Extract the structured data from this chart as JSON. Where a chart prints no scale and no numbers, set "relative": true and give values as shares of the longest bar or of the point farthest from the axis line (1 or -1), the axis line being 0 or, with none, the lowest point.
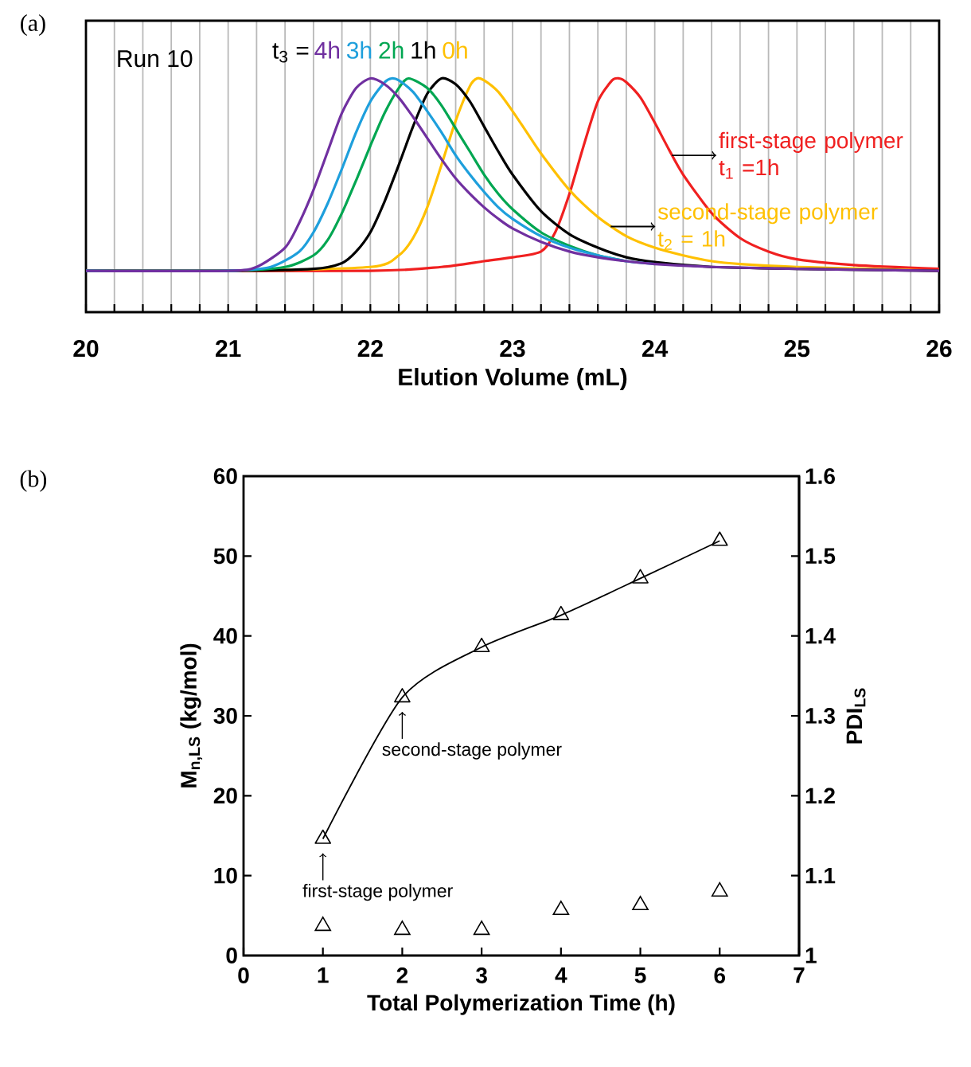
{
  "chart_data": [
    {
      "type": "line",
      "relative": true,
      "tick_labels": "x",
      "grid": "x",
      "xlabel": "Elution Volume (mL)",
      "legend_title": "t$_{3}$ =",
      "xlim": [
        20,
        26
      ],
      "xticks": [
        20,
        {
          "value": 20.2,
          "label": null
        },
        {
          "value": 20.4,
          "label": null
        },
        {
          "value": 20.6,
          "label": null
        },
        {
          "value": 20.8,
          "label": null
        },
        21,
        {
          "value": 21.2,
          "label": null
        },
        {
          "value": 21.4,
          "label": null
        },
        {
          "value": 21.6,
          "label": null
        },
        {
          "value": 21.8,
          "label": null
        },
        22,
        {
          "value": 22.2,
          "label": null
        },
        {
          "value": 22.4,
          "label": null
        },
        {
          "value": 22.6,
          "label": null
        },
        {
          "value": 22.8,
          "label": null
        },
        23,
        {
          "value": 23.2,
          "label": null
        },
        {
          "value": 23.4,
          "label": null
        },
        {
          "value": 23.6,
          "label": null
        },
        {
          "value": 23.8,
          "label": null
        },
        24,
        {
          "value": 24.2,
          "label": null
        },
        {
          "value": 24.4,
          "label": null
        },
        {
          "value": 24.6,
          "label": null
        },
        {
          "value": 24.8,
          "label": null
        },
        25,
        {
          "value": 25.2,
          "label": null
        },
        {
          "value": 25.4,
          "label": null
        },
        {
          "value": 25.6,
          "label": null
        },
        {
          "value": 25.8,
          "label": null
        },
        26
      ],
      "annotations": [
        "(a)",
        "Run 10",
        {
          "text": "first-stage polymer t$_{1}$ =1h",
          "x": 24.12,
          "y": 0.6
        },
        {
          "text": "second-stage polymer t$_{2}$ = 1h",
          "x": 23.69,
          "y": 0.23
        }
      ],
      "series": [
        {
          "name": "4h",
          "color": "#7030a0",
          "x": [
            20,
            21,
            21.2,
            21.4,
            21.5,
            21.6,
            21.7,
            21.8,
            21.9,
            22.0,
            22.1,
            22.2,
            22.3,
            22.4,
            22.5,
            22.6,
            22.7,
            22.8,
            22.9,
            23.0,
            23.2,
            23.4,
            23.6,
            23.8,
            24.0,
            24.4,
            25,
            26
          ],
          "values": [
            0,
            0,
            0.02,
            0.12,
            0.25,
            0.42,
            0.62,
            0.82,
            0.95,
            1.0,
            0.97,
            0.9,
            0.8,
            0.69,
            0.58,
            0.48,
            0.4,
            0.33,
            0.27,
            0.22,
            0.15,
            0.1,
            0.07,
            0.05,
            0.035,
            0.02,
            0.01,
            0
          ]
        },
        {
          "name": "3h",
          "color": "#1e9fdc",
          "x": [
            20,
            21,
            21.3,
            21.5,
            21.6,
            21.7,
            21.8,
            21.9,
            22.0,
            22.1,
            22.15,
            22.2,
            22.3,
            22.4,
            22.5,
            22.6,
            22.7,
            22.8,
            22.9,
            23.0,
            23.2,
            23.4,
            23.6,
            23.8,
            24.0
          ],
          "values": [
            0,
            0,
            0.02,
            0.1,
            0.2,
            0.35,
            0.53,
            0.72,
            0.88,
            0.98,
            1.0,
            0.99,
            0.93,
            0.83,
            0.72,
            0.6,
            0.5,
            0.41,
            0.33,
            0.27,
            0.18,
            0.12,
            0.08,
            0.05,
            0.035
          ]
        },
        {
          "name": "2h",
          "color": "#00a651",
          "x": [
            20,
            21,
            21.4,
            21.6,
            21.7,
            21.8,
            21.9,
            22.0,
            22.1,
            22.2,
            22.27,
            22.4,
            22.5,
            22.6,
            22.7,
            22.8,
            22.9,
            23.0,
            23.2,
            23.4,
            23.6,
            23.8
          ],
          "values": [
            0,
            0,
            0.02,
            0.08,
            0.16,
            0.3,
            0.47,
            0.65,
            0.82,
            0.95,
            1.0,
            0.95,
            0.86,
            0.74,
            0.62,
            0.5,
            0.4,
            0.32,
            0.2,
            0.13,
            0.08,
            0.05
          ]
        },
        {
          "name": "1h",
          "color": "#000000",
          "x": [
            20,
            21,
            21.6,
            21.8,
            21.9,
            22.0,
            22.1,
            22.2,
            22.3,
            22.4,
            22.5,
            22.6,
            22.7,
            22.8,
            22.9,
            23.0,
            23.2,
            23.4,
            23.6,
            23.8,
            24.0,
            24.4,
            25,
            26
          ],
          "values": [
            0,
            0,
            0.01,
            0.04,
            0.1,
            0.2,
            0.36,
            0.55,
            0.75,
            0.92,
            1.0,
            0.97,
            0.88,
            0.75,
            0.62,
            0.5,
            0.31,
            0.19,
            0.12,
            0.07,
            0.045,
            0.02,
            0.01,
            0
          ]
        },
        {
          "name": "0h",
          "color": "#ffc000",
          "x": [
            20,
            21,
            22.0,
            22.2,
            22.3,
            22.4,
            22.5,
            22.6,
            22.7,
            22.75,
            22.8,
            22.9,
            23.0,
            23.1,
            23.2,
            23.4,
            23.6,
            23.8,
            24.0,
            24.2,
            24.4,
            24.6,
            25,
            25.5,
            26
          ],
          "values": [
            0,
            0,
            0.02,
            0.08,
            0.17,
            0.33,
            0.55,
            0.78,
            0.96,
            1.0,
            0.99,
            0.93,
            0.83,
            0.72,
            0.61,
            0.42,
            0.28,
            0.18,
            0.12,
            0.08,
            0.05,
            0.035,
            0.02,
            0.01,
            0
          ]
        },
        {
          "color": "#f02020",
          "x": [
            20,
            22,
            22.5,
            22.8,
            23.0,
            23.2,
            23.3,
            23.4,
            23.5,
            23.6,
            23.7,
            23.75,
            23.8,
            23.9,
            24.0,
            24.1,
            24.2,
            24.4,
            24.6,
            24.8,
            25.0,
            25.4,
            26
          ],
          "values": [
            0,
            0,
            0.02,
            0.05,
            0.07,
            0.1,
            0.2,
            0.4,
            0.65,
            0.88,
            0.99,
            1.0,
            0.98,
            0.9,
            0.77,
            0.63,
            0.5,
            0.3,
            0.17,
            0.1,
            0.06,
            0.03,
            0.01
          ]
        }
      ]
    },
    {
      "type": "line",
      "marker": "triangle",
      "xlabel": "Total Polymerization Time (h)",
      "ylabel": "M$_{n,LS}$ (kg/mol)",
      "y2label": "PDI$_{LS}$",
      "xlim": [
        0,
        7
      ],
      "xticks": [
        0,
        1,
        2,
        3,
        4,
        5,
        6,
        7
      ],
      "ylim": [
        0,
        60
      ],
      "yticks": [
        0,
        10,
        20,
        30,
        40,
        50,
        60
      ],
      "y2lim": [
        1,
        1.6
      ],
      "y2ticks": [
        1,
        1.1,
        1.2,
        1.3,
        1.4,
        1.5,
        1.6
      ],
      "annotations": [
        "(b)",
        {
          "text": "first-stage polymer",
          "x": 1,
          "y": 14.6
        },
        {
          "text": "second-stage polymer",
          "x": 2,
          "y": 32.3
        }
      ],
      "series": [
        {
          "type": "line",
          "color": "#000000",
          "x": [
            1,
            2,
            3,
            4,
            5,
            6
          ],
          "values": [
            14.6,
            32.3,
            38.6,
            42.6,
            47.2,
            51.9
          ]
        },
        {
          "type": "scatter",
          "axis": "y2",
          "color": "#000000",
          "x": [
            1,
            2,
            3,
            4,
            5,
            6
          ],
          "values": [
            1.037,
            1.032,
            1.032,
            1.057,
            1.063,
            1.08
          ]
        }
      ]
    }
  ]
}
